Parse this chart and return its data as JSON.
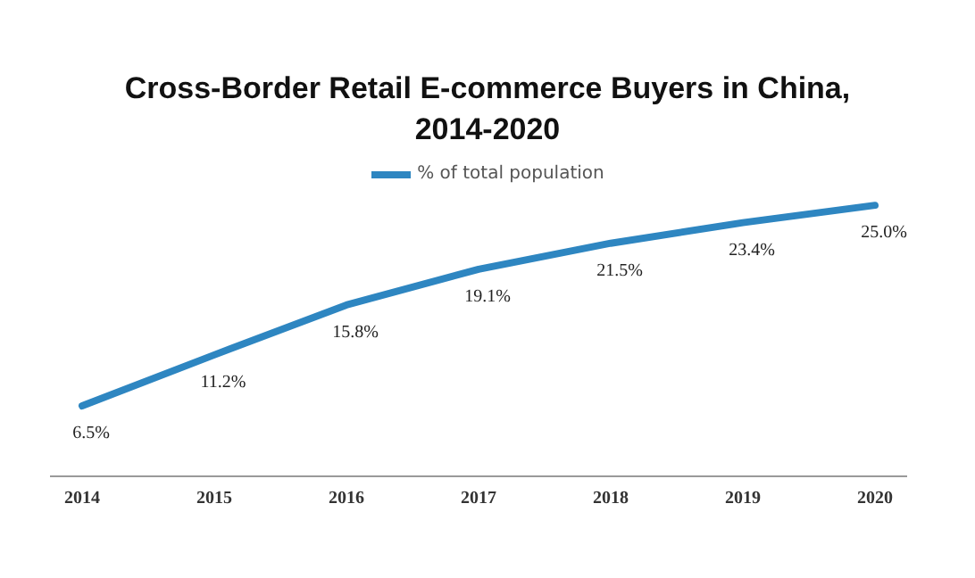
{
  "chart_data": {
    "type": "line",
    "title": "Cross-Border Retail E-commerce Buyers in China,\n2014-2020",
    "categories": [
      "2014",
      "2015",
      "2016",
      "2017",
      "2018",
      "2019",
      "2020"
    ],
    "series": [
      {
        "name": "% of total population",
        "color": "#2e86c1",
        "values": [
          6.5,
          11.2,
          15.8,
          19.1,
          21.5,
          23.4,
          25.0
        ],
        "value_labels": [
          "6.5%",
          "11.2%",
          "15.8%",
          "19.1%",
          "21.5%",
          "23.4%",
          "25.0%"
        ]
      }
    ],
    "legend": "top",
    "marker": "none",
    "line_style": "solid"
  }
}
